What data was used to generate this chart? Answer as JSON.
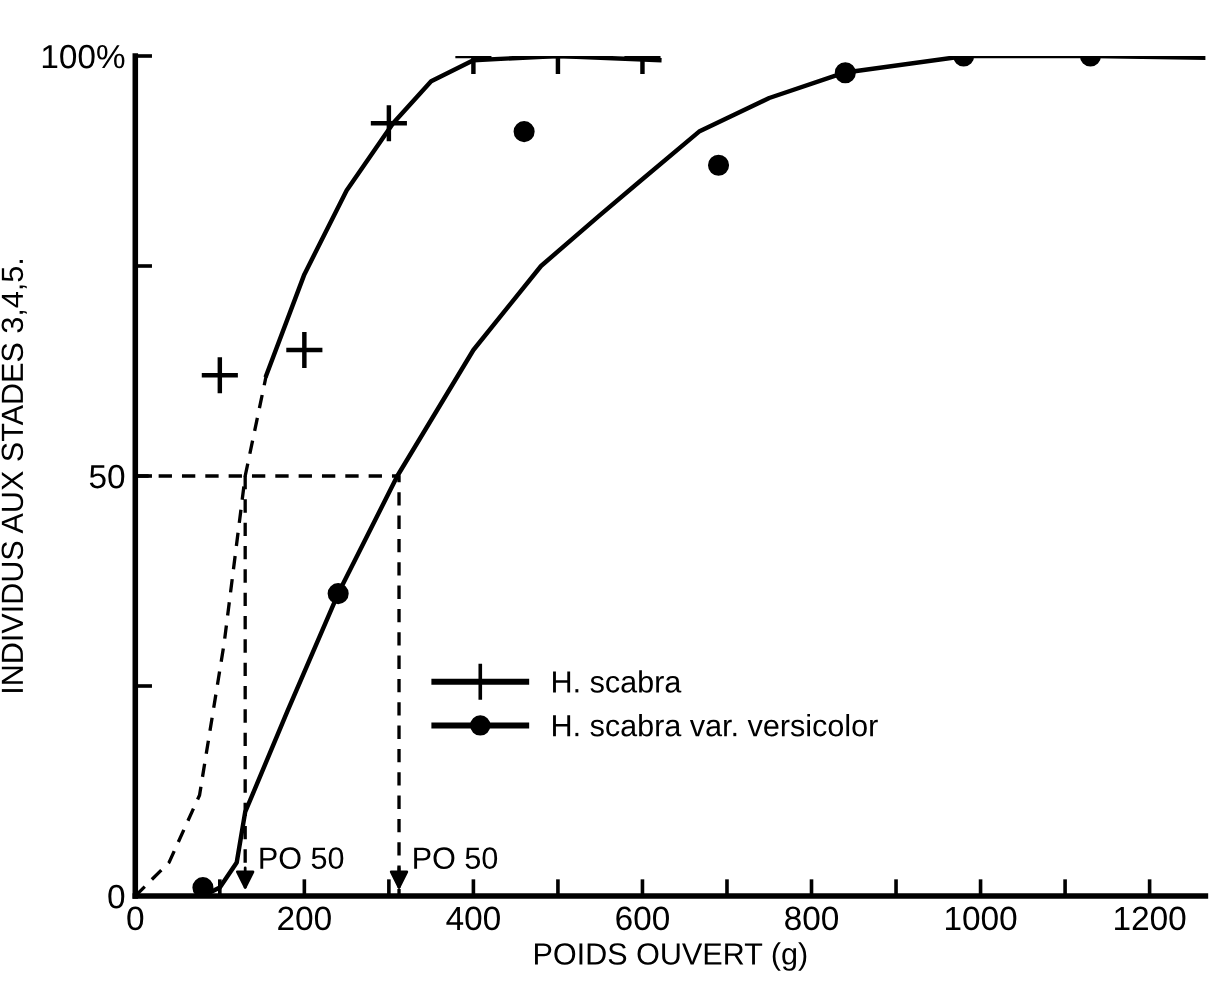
{
  "chart_data": {
    "type": "scatter",
    "xlabel": "POIDS OUVERT (g)",
    "ylabel": "INDIVIDUS AUX STADES 3,4,5.",
    "xlim": [
      0,
      1266
    ],
    "xticks": [
      0,
      {
        "value": 100,
        "label": null
      },
      200,
      {
        "value": 300,
        "label": null
      },
      400,
      {
        "value": 500,
        "label": null
      },
      600,
      {
        "value": 700,
        "label": null
      },
      800,
      {
        "value": 900,
        "label": null
      },
      1000,
      {
        "value": 1100,
        "label": null
      },
      1200
    ],
    "ylim": [
      0,
      100
    ],
    "yticks": [
      0,
      {
        "value": 25,
        "label": null
      },
      50,
      {
        "value": 75,
        "label": null
      },
      {
        "value": 100,
        "label": "100%"
      }
    ],
    "grid": false,
    "legend": "lower right",
    "series": [
      {
        "name": "H. scabra",
        "marker": "cross",
        "color": "#000000",
        "x": [
          100,
          200,
          300,
          400,
          500,
          600
        ],
        "values": [
          62,
          65,
          92,
          100,
          100,
          100
        ]
      },
      {
        "name": "H. scabra var. versicolor",
        "marker": "circle",
        "color": "#000000",
        "x": [
          80,
          240,
          460,
          690,
          840,
          980,
          1130
        ],
        "values": [
          1,
          36,
          91,
          87,
          98,
          100,
          100
        ]
      },
      {
        "type": "line",
        "line_style": "dashed",
        "color": "#000000",
        "x": [
          0,
          40,
          76,
          105,
          130,
          155
        ],
        "values": [
          0,
          4,
          12,
          30,
          50,
          62
        ]
      },
      {
        "type": "line",
        "line_style": "solid",
        "color": "#000000",
        "x": [
          155,
          200,
          250,
          305,
          350,
          400,
          500,
          620
        ],
        "values": [
          62,
          74,
          84,
          92,
          97,
          99.5,
          100,
          99.5
        ]
      },
      {
        "type": "line",
        "line_style": "solid",
        "color": "#000000",
        "x": [
          80,
          100,
          120,
          130,
          180,
          240,
          310,
          400,
          480,
          549,
          596,
          667,
          750,
          838,
          982,
          1134,
          1266
        ],
        "values": [
          0,
          1,
          4,
          10,
          22,
          36,
          50,
          65,
          75,
          81,
          85,
          91,
          95,
          98,
          100,
          100,
          99.8
        ]
      },
      {
        "type": "line",
        "line_style": "dashed",
        "color": "#000000",
        "x": [
          0,
          312,
          312
        ],
        "values": [
          50,
          50,
          0
        ]
      },
      {
        "type": "line",
        "line_style": "dashed",
        "color": "#000000",
        "x": [
          130,
          130
        ],
        "values": [
          50,
          0
        ]
      }
    ],
    "annotations": [
      {
        "text": "PO 50",
        "x": 130,
        "y": 0
      },
      {
        "text": "PO 50",
        "x": 312,
        "y": 0
      }
    ]
  }
}
